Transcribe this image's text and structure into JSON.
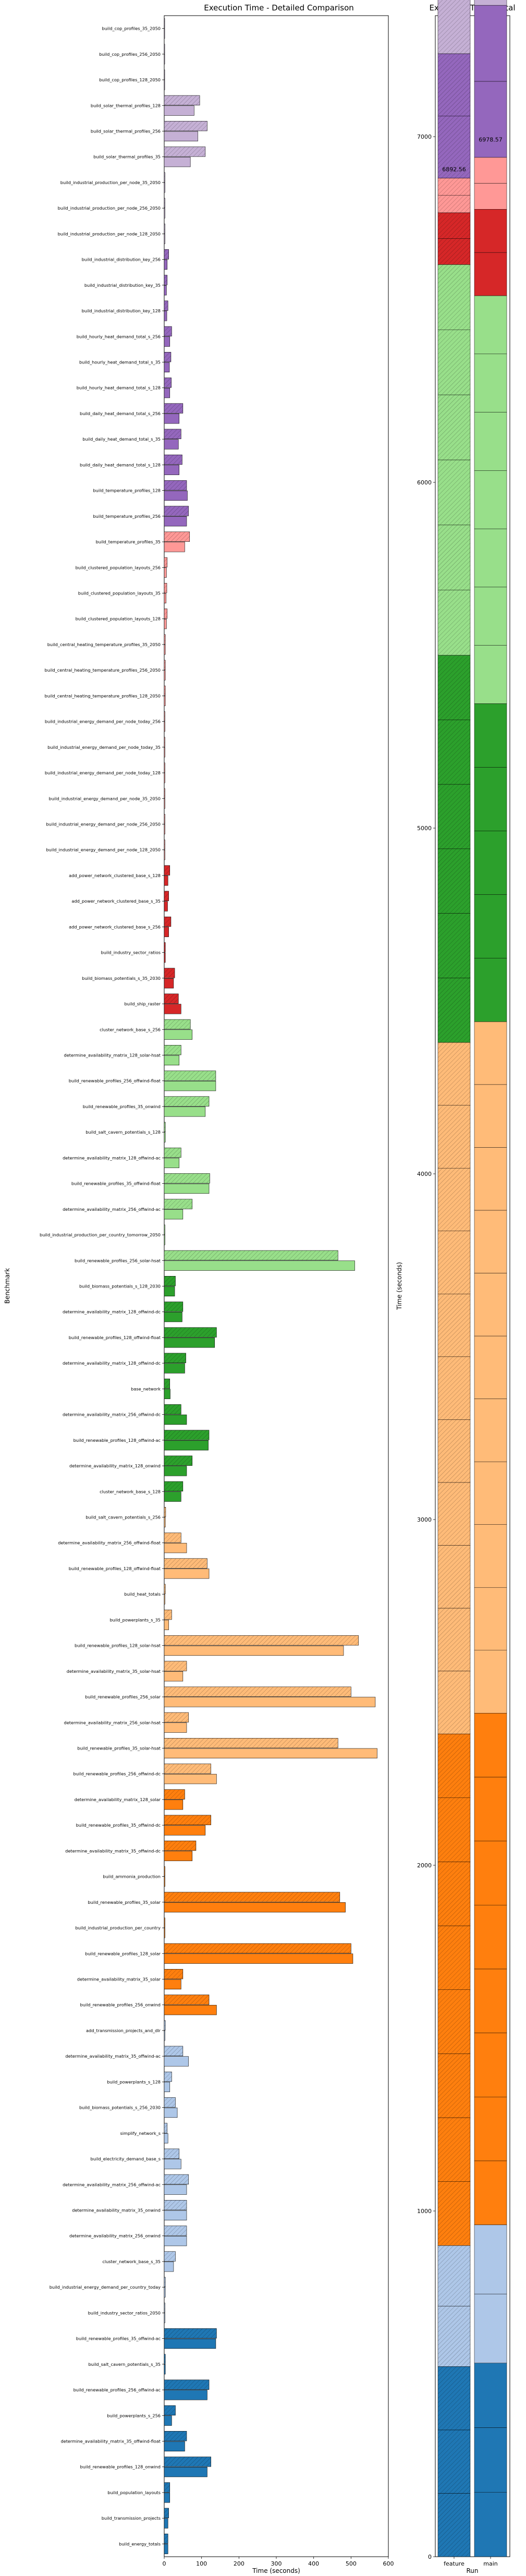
{
  "chart_data": [
    {
      "type": "bar",
      "orientation": "horizontal",
      "title": "Execution Time - Detailed Comparison",
      "xlabel": "Time (seconds)",
      "ylabel": "Benchmark",
      "xlim": [
        0,
        600
      ],
      "xticks": [
        0,
        100,
        200,
        300,
        400,
        500,
        600
      ],
      "series_note": "each benchmark has two bars: feature (upper, lighter/hatched) and main (lower)",
      "benchmarks": [
        {
          "name": "build_cop_profiles_35_2050",
          "color": "#c5b0d5",
          "feature": 1,
          "main": 1
        },
        {
          "name": "build_cop_profiles_256_2050",
          "color": "#c5b0d5",
          "feature": 1,
          "main": 1
        },
        {
          "name": "build_cop_profiles_128_2050",
          "color": "#c5b0d5",
          "feature": 1,
          "main": 1
        },
        {
          "name": "build_solar_thermal_profiles_128",
          "color": "#c5b0d5",
          "feature": 95,
          "main": 80
        },
        {
          "name": "build_solar_thermal_profiles_256",
          "color": "#c5b0d5",
          "feature": 115,
          "main": 90
        },
        {
          "name": "build_solar_thermal_profiles_35",
          "color": "#c5b0d5",
          "feature": 110,
          "main": 70
        },
        {
          "name": "build_industrial_production_per_node_35_2050",
          "color": "#c5b0d5",
          "feature": 2,
          "main": 2
        },
        {
          "name": "build_industrial_production_per_node_256_2050",
          "color": "#c5b0d5",
          "feature": 2,
          "main": 2
        },
        {
          "name": "build_industrial_production_per_node_128_2050",
          "color": "#c5b0d5",
          "feature": 2,
          "main": 2
        },
        {
          "name": "build_industrial_distribution_key_256",
          "color": "#9467bd",
          "feature": 12,
          "main": 8
        },
        {
          "name": "build_industrial_distribution_key_35",
          "color": "#9467bd",
          "feature": 8,
          "main": 6
        },
        {
          "name": "build_industrial_distribution_key_128",
          "color": "#9467bd",
          "feature": 10,
          "main": 7
        },
        {
          "name": "build_hourly_heat_demand_total_s_256",
          "color": "#9467bd",
          "feature": 20,
          "main": 15
        },
        {
          "name": "build_hourly_heat_demand_total_s_35",
          "color": "#9467bd",
          "feature": 18,
          "main": 14
        },
        {
          "name": "build_hourly_heat_demand_total_s_128",
          "color": "#9467bd",
          "feature": 19,
          "main": 15
        },
        {
          "name": "build_daily_heat_demand_total_s_256",
          "color": "#9467bd",
          "feature": 50,
          "main": 40
        },
        {
          "name": "build_daily_heat_demand_total_s_35",
          "color": "#9467bd",
          "feature": 45,
          "main": 38
        },
        {
          "name": "build_daily_heat_demand_total_s_128",
          "color": "#9467bd",
          "feature": 48,
          "main": 40
        },
        {
          "name": "build_temperature_profiles_128",
          "color": "#9467bd",
          "feature": 60,
          "main": 62
        },
        {
          "name": "build_temperature_profiles_256",
          "color": "#9467bd",
          "feature": 65,
          "main": 60
        },
        {
          "name": "build_temperature_profiles_35",
          "color": "#ff9896",
          "feature": 68,
          "main": 55
        },
        {
          "name": "build_clustered_population_layouts_256",
          "color": "#ff9896",
          "feature": 8,
          "main": 6
        },
        {
          "name": "build_clustered_population_layouts_35",
          "color": "#ff9896",
          "feature": 7,
          "main": 5
        },
        {
          "name": "build_clustered_population_layouts_128",
          "color": "#ff9896",
          "feature": 8,
          "main": 6
        },
        {
          "name": "build_central_heating_temperature_profiles_35_2050",
          "color": "#ff9896",
          "feature": 3,
          "main": 3
        },
        {
          "name": "build_central_heating_temperature_profiles_256_2050",
          "color": "#ff9896",
          "feature": 3,
          "main": 3
        },
        {
          "name": "build_central_heating_temperature_profiles_128_2050",
          "color": "#ff9896",
          "feature": 3,
          "main": 3
        },
        {
          "name": "build_industrial_energy_demand_per_node_today_256",
          "color": "#ff9896",
          "feature": 2,
          "main": 2
        },
        {
          "name": "build_industrial_energy_demand_per_node_today_35",
          "color": "#ff9896",
          "feature": 2,
          "main": 2
        },
        {
          "name": "build_industrial_energy_demand_per_node_today_128",
          "color": "#ff9896",
          "feature": 2,
          "main": 2
        },
        {
          "name": "build_industrial_energy_demand_per_node_35_2050",
          "color": "#ff9896",
          "feature": 2,
          "main": 2
        },
        {
          "name": "build_industrial_energy_demand_per_node_256_2050",
          "color": "#ff9896",
          "feature": 2,
          "main": 2
        },
        {
          "name": "build_industrial_energy_demand_per_node_128_2050",
          "color": "#ff9896",
          "feature": 2,
          "main": 2
        },
        {
          "name": "add_power_network_clustered_base_s_128",
          "color": "#d62728",
          "feature": 15,
          "main": 10
        },
        {
          "name": "add_power_network_clustered_base_s_35",
          "color": "#d62728",
          "feature": 12,
          "main": 9
        },
        {
          "name": "add_power_network_clustered_base_s_256",
          "color": "#d62728",
          "feature": 18,
          "main": 12
        },
        {
          "name": "build_industry_sector_ratios",
          "color": "#d62728",
          "feature": 3,
          "main": 3
        },
        {
          "name": "build_biomass_potentials_s_35_2030",
          "color": "#d62728",
          "feature": 28,
          "main": 25
        },
        {
          "name": "build_ship_raster",
          "color": "#d62728",
          "feature": 38,
          "main": 45
        },
        {
          "name": "cluster_network_base_s_256",
          "color": "#98df8a",
          "feature": 70,
          "main": 75
        },
        {
          "name": "determine_availability_matrix_128_solar-hsat",
          "color": "#98df8a",
          "feature": 45,
          "main": 40
        },
        {
          "name": "build_renewable_profiles_256_offwind-float",
          "color": "#98df8a",
          "feature": 138,
          "main": 138
        },
        {
          "name": "build_renewable_profiles_35_onwind",
          "color": "#98df8a",
          "feature": 120,
          "main": 110
        },
        {
          "name": "build_salt_cavern_potentials_s_128",
          "color": "#98df8a",
          "feature": 3,
          "main": 3
        },
        {
          "name": "determine_availability_matrix_128_offwind-ac",
          "color": "#98df8a",
          "feature": 45,
          "main": 40
        },
        {
          "name": "build_renewable_profiles_35_offwind-float",
          "color": "#98df8a",
          "feature": 122,
          "main": 120
        },
        {
          "name": "determine_availability_matrix_256_offwind-ac",
          "color": "#98df8a",
          "feature": 75,
          "main": 50
        },
        {
          "name": "build_industrial_production_per_country_tomorrow_2050",
          "color": "#98df8a",
          "feature": 2,
          "main": 2
        },
        {
          "name": "build_renewable_profiles_256_solar-hsat",
          "color": "#98df8a",
          "feature": 465,
          "main": 510
        },
        {
          "name": "build_biomass_potentials_s_128_2030",
          "color": "#2ca02c",
          "feature": 30,
          "main": 28
        },
        {
          "name": "determine_availability_matrix_128_offwind-dc",
          "color": "#2ca02c",
          "feature": 50,
          "main": 48
        },
        {
          "name": "build_renewable_profiles_128_offwind-float",
          "color": "#2ca02c",
          "feature": 140,
          "main": 135
        },
        {
          "name": "determine_availability_matrix_128_offwind-dc",
          "color": "#2ca02c",
          "feature": 58,
          "main": 55
        },
        {
          "name": "base_network",
          "color": "#2ca02c",
          "feature": 15,
          "main": 16
        },
        {
          "name": "determine_availability_matrix_256_offwind-dc",
          "color": "#2ca02c",
          "feature": 45,
          "main": 60
        },
        {
          "name": "build_renewable_profiles_128_offwind-ac",
          "color": "#2ca02c",
          "feature": 120,
          "main": 118
        },
        {
          "name": "determine_availability_matrix_128_onwind",
          "color": "#2ca02c",
          "feature": 75,
          "main": 60
        },
        {
          "name": "cluster_network_base_s_128",
          "color": "#2ca02c",
          "feature": 50,
          "main": 45
        },
        {
          "name": "build_salt_cavern_potentials_s_256",
          "color": "#ffbb78",
          "feature": 4,
          "main": 3
        },
        {
          "name": "determine_availability_matrix_256_offwind-float",
          "color": "#ffbb78",
          "feature": 45,
          "main": 60
        },
        {
          "name": "build_renewable_profiles_128_offwind-float",
          "color": "#ffbb78",
          "feature": 115,
          "main": 120
        },
        {
          "name": "build_heat_totals",
          "color": "#ffbb78",
          "feature": 3,
          "main": 2
        },
        {
          "name": "build_powerplants_s_35",
          "color": "#ffbb78",
          "feature": 20,
          "main": 12
        },
        {
          "name": "build_renewable_profiles_128_solar-hsat",
          "color": "#ffbb78",
          "feature": 520,
          "main": 480
        },
        {
          "name": "determine_availability_matrix_35_solar-hsat",
          "color": "#ffbb78",
          "feature": 60,
          "main": 50
        },
        {
          "name": "build_renewable_profiles_256_solar",
          "color": "#ffbb78",
          "feature": 500,
          "main": 565
        },
        {
          "name": "determine_availability_matrix_256_solar-hsat",
          "color": "#ffbb78",
          "feature": 65,
          "main": 60
        },
        {
          "name": "build_renewable_profiles_35_solar-hsat",
          "color": "#ffbb78",
          "feature": 465,
          "main": 570
        },
        {
          "name": "build_renewable_profiles_256_offwind-dc",
          "color": "#ffbb78",
          "feature": 125,
          "main": 140
        },
        {
          "name": "determine_availability_matrix_128_solar",
          "color": "#ff7f0e",
          "feature": 55,
          "main": 50
        },
        {
          "name": "build_renewable_profiles_35_offwind-dc",
          "color": "#ff7f0e",
          "feature": 125,
          "main": 110
        },
        {
          "name": "determine_availability_matrix_35_offwind-dc",
          "color": "#ff7f0e",
          "feature": 85,
          "main": 75
        },
        {
          "name": "build_ammonia_production",
          "color": "#ff7f0e",
          "feature": 2,
          "main": 2
        },
        {
          "name": "build_renewable_profiles_35_solar",
          "color": "#ff7f0e",
          "feature": 470,
          "main": 485
        },
        {
          "name": "build_industrial_production_per_country",
          "color": "#ff7f0e",
          "feature": 2,
          "main": 2
        },
        {
          "name": "build_renewable_profiles_128_solar",
          "color": "#ff7f0e",
          "feature": 500,
          "main": 505
        },
        {
          "name": "determine_availability_matrix_35_solar",
          "color": "#ff7f0e",
          "feature": 50,
          "main": 45
        },
        {
          "name": "build_renewable_profiles_256_onwind",
          "color": "#ff7f0e",
          "feature": 120,
          "main": 140
        },
        {
          "name": "add_transmission_projects_and_dlr",
          "color": "#aec7e8",
          "feature": 3,
          "main": 2
        },
        {
          "name": "determine_availability_matrix_35_offwind-ac",
          "color": "#aec7e8",
          "feature": 50,
          "main": 65
        },
        {
          "name": "build_powerplants_s_128",
          "color": "#aec7e8",
          "feature": 20,
          "main": 15
        },
        {
          "name": "build_biomass_potentials_s_256_2030",
          "color": "#aec7e8",
          "feature": 30,
          "main": 35
        },
        {
          "name": "simplify_network_s",
          "color": "#aec7e8",
          "feature": 8,
          "main": 10
        },
        {
          "name": "build_electricity_demand_base_s",
          "color": "#aec7e8",
          "feature": 40,
          "main": 45
        },
        {
          "name": "determine_availability_matrix_256_offwind-ac",
          "color": "#aec7e8",
          "feature": 65,
          "main": 60
        },
        {
          "name": "determine_availability_matrix_35_onwind",
          "color": "#aec7e8",
          "feature": 60,
          "main": 60
        },
        {
          "name": "determine_availability_matrix_256_onwind",
          "color": "#aec7e8",
          "feature": 60,
          "main": 60
        },
        {
          "name": "cluster_network_base_s_35",
          "color": "#aec7e8",
          "feature": 30,
          "main": 25
        },
        {
          "name": "build_industrial_energy_demand_per_country_today",
          "color": "#aec7e8",
          "feature": 3,
          "main": 3
        },
        {
          "name": "build_industry_sector_ratios_2050",
          "color": "#aec7e8",
          "feature": 2,
          "main": 2
        },
        {
          "name": "build_renewable_profiles_35_offwind-ac",
          "color": "#1f77b4",
          "feature": 140,
          "main": 138
        },
        {
          "name": "build_salt_cavern_potentials_s_35",
          "color": "#1f77b4",
          "feature": 3,
          "main": 3
        },
        {
          "name": "build_renewable_profiles_256_offwind-ac",
          "color": "#1f77b4",
          "feature": 120,
          "main": 115
        },
        {
          "name": "build_powerplants_s_256",
          "color": "#1f77b4",
          "feature": 30,
          "main": 20
        },
        {
          "name": "determine_availability_matrix_35_offwind-float",
          "color": "#1f77b4",
          "feature": 60,
          "main": 55
        },
        {
          "name": "build_renewable_profiles_128_onwind",
          "color": "#1f77b4",
          "feature": 125,
          "main": 115
        },
        {
          "name": "build_population_layouts",
          "color": "#1f77b4",
          "feature": 15,
          "main": 15
        },
        {
          "name": "build_transmission_projects",
          "color": "#1f77b4",
          "feature": 12,
          "main": 10
        },
        {
          "name": "build_energy_totals",
          "color": "#1f77b4",
          "feature": 10,
          "main": 10
        }
      ]
    },
    {
      "type": "stacked-bar",
      "title": "Execution Time - Total",
      "xlabel": "Run",
      "ylabel": "Time (seconds)",
      "ylim": [
        0,
        7000
      ],
      "yticks": [
        0,
        1000,
        2000,
        3000,
        4000,
        5000,
        6000,
        7000
      ],
      "categories": [
        "feature",
        "main"
      ],
      "totals": [
        6892.56,
        6978.57
      ],
      "total_labels": [
        "6892.56",
        "6978.57"
      ],
      "color_groups_bottom_to_top": [
        "#1f77b4",
        "#aec7e8",
        "#ff7f0e",
        "#ffbb78",
        "#2ca02c",
        "#98df8a",
        "#d62728",
        "#ff9896",
        "#9467bd",
        "#c5b0d5"
      ],
      "group_totals_feature": [
        550,
        350,
        1480,
        2000,
        1120,
        1130,
        150,
        100,
        360,
        653
      ],
      "group_totals_main": [
        560,
        400,
        1480,
        2000,
        920,
        1180,
        250,
        150,
        440,
        600
      ]
    }
  ]
}
